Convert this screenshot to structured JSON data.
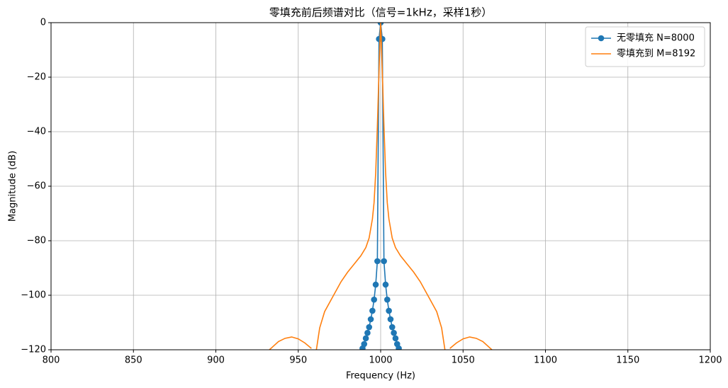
{
  "chart_data": {
    "type": "line",
    "title": "零填充前后频谱对比（信号=1kHz，采样1秒）",
    "xlabel": "Frequency (Hz)",
    "ylabel": "Magnitude (dB)",
    "xlim": [
      800,
      1200
    ],
    "ylim": [
      -120,
      0
    ],
    "xticks": [
      800,
      850,
      900,
      950,
      1000,
      1050,
      1100,
      1150,
      1200
    ],
    "yticks": [
      {
        "value": 0,
        "label": "0"
      },
      {
        "value": -20,
        "label": "−20"
      },
      {
        "value": -40,
        "label": "−40"
      },
      {
        "value": -60,
        "label": "−60"
      },
      {
        "value": -80,
        "label": "−80"
      },
      {
        "value": -100,
        "label": "−100"
      },
      {
        "value": -120,
        "label": "−120"
      }
    ],
    "grid": true,
    "legend": "upper right",
    "series": [
      {
        "name": "无零填充 N=8000",
        "color": "#1f77b4",
        "marker": true,
        "x": [
          989,
          990,
          991,
          992,
          993,
          994,
          995,
          996,
          997,
          998,
          999,
          1000,
          1001,
          1002,
          1003,
          1004,
          1005,
          1006,
          1007,
          1008,
          1009,
          1010,
          1011
        ],
        "values": [
          -119.5,
          -117.9,
          -115.8,
          -113.8,
          -111.7,
          -108.8,
          -105.7,
          -101.6,
          -96.1,
          -87.5,
          -6,
          0,
          -6,
          -87.5,
          -96.1,
          -101.6,
          -105.7,
          -108.8,
          -111.7,
          -113.8,
          -115.8,
          -117.9,
          -119.5
        ]
      },
      {
        "name": "零填充到 M=8192",
        "color": "#ff7f0e",
        "marker": false,
        "x": [
          932.5,
          938,
          942,
          946,
          950,
          954,
          958,
          960,
          961,
          963,
          966,
          971,
          976,
          980,
          984,
          988,
          991,
          993,
          995,
          996,
          997,
          998,
          999,
          999.5,
          1000,
          1000.5,
          1001,
          1002,
          1003,
          1004,
          1005,
          1007,
          1009,
          1012,
          1016,
          1020,
          1024,
          1029,
          1034,
          1037,
          1039,
          1040,
          1042,
          1046,
          1050,
          1054,
          1058,
          1062,
          1067.5
        ],
        "values": [
          -120,
          -117,
          -115.8,
          -115.3,
          -116,
          -117.5,
          -119.5,
          null,
          -120,
          -112,
          -106,
          -100.5,
          -95,
          -91.5,
          -88.5,
          -85.5,
          -82.5,
          -79,
          -72,
          -66,
          -55,
          -38,
          -18,
          -8,
          0,
          -8,
          -18,
          -38,
          -55,
          -66,
          -72,
          -79,
          -82.5,
          -85.5,
          -88.5,
          -91.5,
          -95,
          -100.5,
          -106,
          -112,
          -120,
          null,
          -119.5,
          -117.5,
          -116,
          -115.3,
          -115.8,
          -117,
          -120
        ]
      }
    ]
  }
}
